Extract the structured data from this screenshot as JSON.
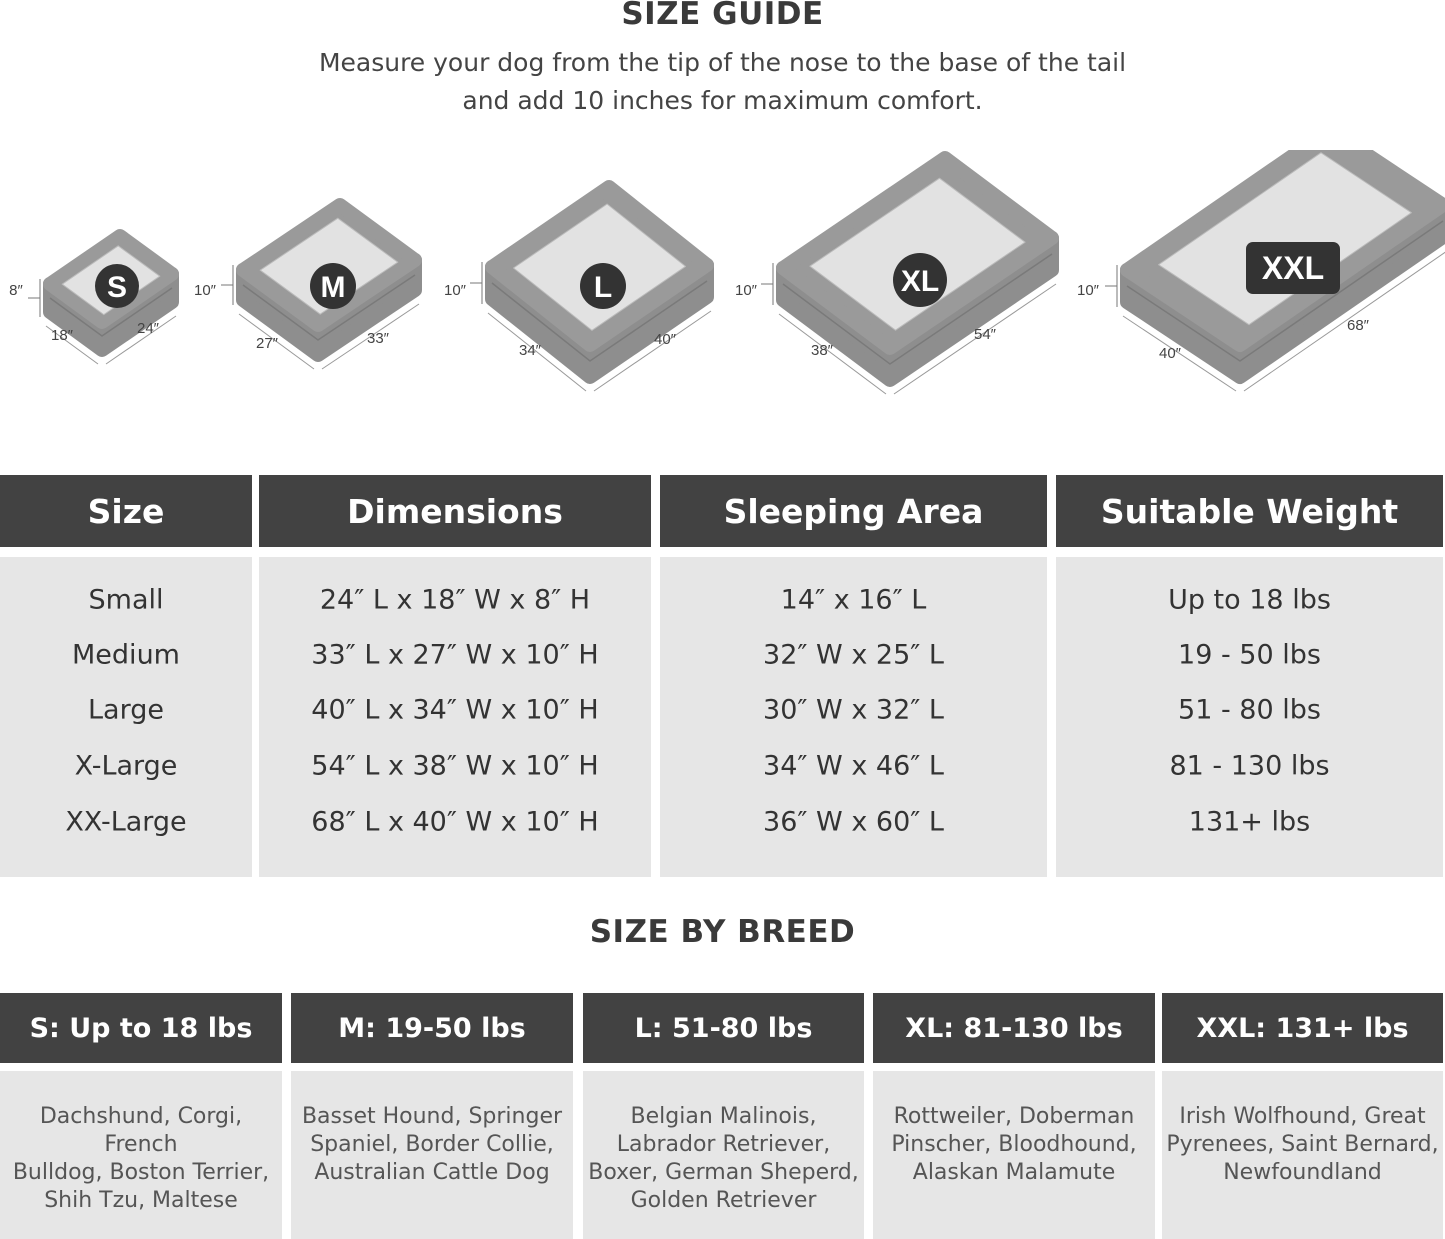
{
  "size_guide": {
    "title": "SIZE GUIDE",
    "subtitle_line1": "Measure your dog from the tip of the nose to the base of the tail",
    "subtitle_line2": "and add 10 inches for maximum comfort."
  },
  "beds": [
    {
      "badge": "S",
      "height": "8″",
      "width": "18″",
      "length": "24″"
    },
    {
      "badge": "M",
      "height": "10″",
      "width": "27″",
      "length": "33″"
    },
    {
      "badge": "L",
      "height": "10″",
      "width": "34″",
      "length": "40″"
    },
    {
      "badge": "XL",
      "height": "10″",
      "width": "38″",
      "length": "54″"
    },
    {
      "badge": "XXL",
      "height": "10″",
      "width": "40″",
      "length": "68″"
    }
  ],
  "size_table": {
    "headers": [
      "Size",
      "Dimensions",
      "Sleeping Area",
      "Suitable Weight"
    ],
    "columns": [
      [
        "Small",
        "Medium",
        "Large",
        "X-Large",
        "XX-Large"
      ],
      [
        "24″ L x 18″ W x 8″ H",
        "33″ L x 27″ W x 10″ H",
        "40″ L x 34″ W x 10″ H",
        "54″ L x 38″ W x 10″ H",
        "68″ L x 40″ W x 10″ H"
      ],
      [
        "14″ x 16″ L",
        "32″ W x 25″ L",
        "30″ W x 32″ L",
        "34″ W x 46″ L",
        "36″ W x 60″ L"
      ],
      [
        "Up to 18 lbs",
        "19 - 50 lbs",
        "51 - 80 lbs",
        "81 - 130 lbs",
        "131+ lbs"
      ]
    ]
  },
  "breed_section": {
    "title": "SIZE BY BREED",
    "columns": [
      {
        "header": "S: Up to 18 lbs",
        "breeds": [
          "Dachshund, Corgi, French",
          "Bulldog, Boston Terrier,",
          "Shih Tzu, Maltese"
        ]
      },
      {
        "header": "M: 19-50 lbs",
        "breeds": [
          "Basset Hound, Springer",
          "Spaniel, Border Collie,",
          "Australian Cattle Dog"
        ]
      },
      {
        "header": "L: 51-80 lbs",
        "breeds": [
          "Belgian Malinois,",
          "Labrador Retriever,",
          "Boxer, German Sheperd,",
          "Golden Retriever"
        ]
      },
      {
        "header": "XL: 81-130 lbs",
        "breeds": [
          "Rottweiler, Doberman",
          "Pinscher, Bloodhound,",
          "Alaskan Malamute"
        ]
      },
      {
        "header": "XXL: 131+ lbs",
        "breeds": [
          "Irish Wolfhound, Great",
          "Pyrenees, Saint Bernard,",
          "Newfoundland"
        ]
      }
    ]
  },
  "colors": {
    "header_bg": "#424242",
    "cell_bg": "#e6e6e6",
    "bed_frame": "#9a9a9a",
    "bed_cushion": "#e2e2e2"
  }
}
